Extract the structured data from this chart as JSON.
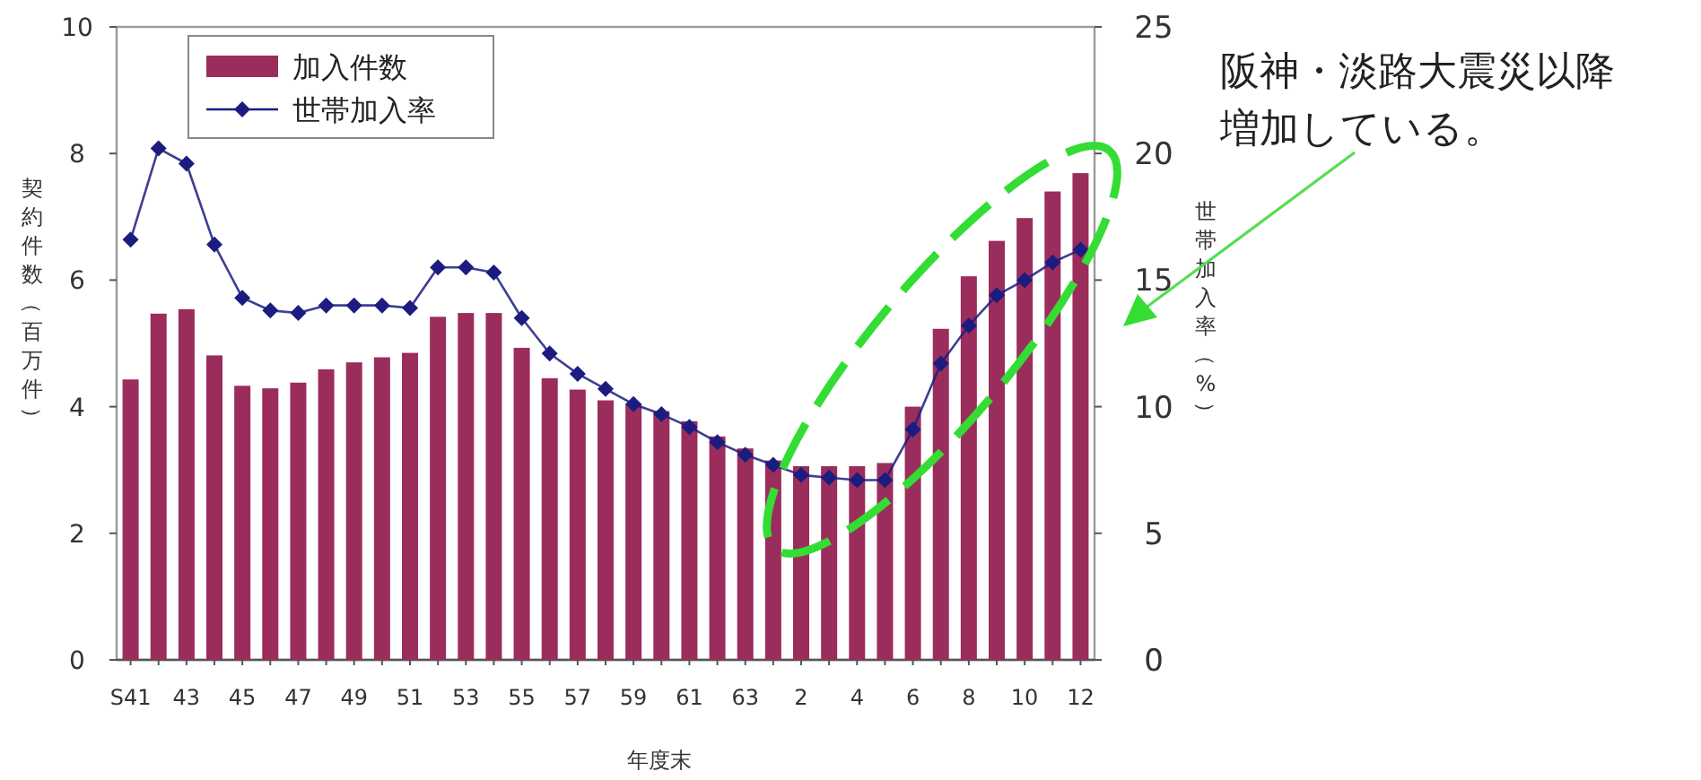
{
  "chart_data": {
    "type": "bar",
    "xlabel": "年度末",
    "ylabel": "契約件数（百万件）",
    "y2label": "世帯加入率（%）",
    "categories": [
      "S41",
      null,
      "43",
      null,
      "45",
      null,
      "47",
      null,
      "49",
      null,
      "51",
      null,
      "53",
      null,
      "55",
      null,
      "57",
      null,
      "59",
      null,
      "61",
      null,
      "63",
      null,
      "2",
      null,
      "4",
      null,
      "6",
      null,
      "8",
      null,
      "10",
      null,
      "12"
    ],
    "series": [
      {
        "name": "加入件数",
        "color": "#9b2d5c",
        "values": [
          4.43,
          5.47,
          5.54,
          4.81,
          4.33,
          4.29,
          4.38,
          4.59,
          4.7,
          4.78,
          4.85,
          5.42,
          5.48,
          5.48,
          4.93,
          4.45,
          4.27,
          4.1,
          4.05,
          3.93,
          3.77,
          3.53,
          3.34,
          3.15,
          3.06,
          3.06,
          3.06,
          3.11,
          4.0,
          5.23,
          6.06,
          6.62,
          6.98,
          7.4,
          7.69
        ]
      },
      {
        "name": "世帯加入率",
        "type": "line",
        "axis": "y2",
        "color": "#1c1c80",
        "marker": "diamond",
        "values": [
          16.6,
          20.2,
          19.6,
          16.4,
          14.3,
          13.8,
          13.7,
          14.0,
          14.0,
          14.0,
          13.9,
          15.5,
          15.5,
          15.3,
          13.5,
          12.1,
          11.3,
          10.7,
          10.1,
          9.7,
          9.2,
          8.6,
          8.1,
          7.7,
          7.3,
          7.2,
          7.1,
          7.1,
          9.1,
          11.7,
          13.2,
          14.4,
          15.0,
          15.7,
          16.2
        ]
      }
    ],
    "ylim": [
      0,
      10
    ],
    "yticks": [
      0,
      2,
      4,
      6,
      8,
      10
    ],
    "y2lim": [
      0,
      25
    ],
    "y2ticks": [
      0,
      5,
      10,
      15,
      20,
      25
    ],
    "grid": false,
    "legend": "top left",
    "annotations": [
      "阪神・淡路大震災以降",
      "増加している。"
    ]
  }
}
